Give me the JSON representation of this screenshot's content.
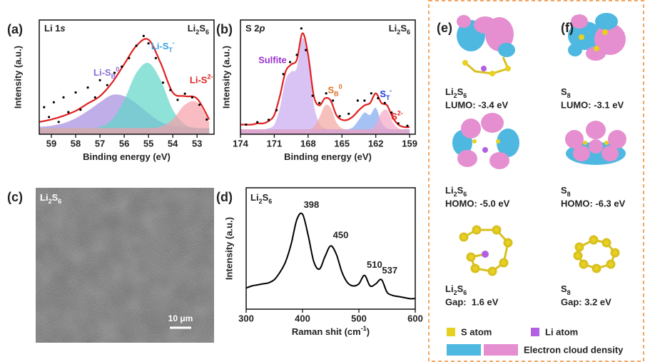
{
  "chart_data": [
    {
      "type": "line",
      "panel_label": "(a)",
      "title": [
        {
          "text": "Li 1"
        },
        {
          "text": "s",
          "style": "italic"
        }
      ],
      "compound": [
        {
          "text": "Li"
        },
        {
          "text": "2",
          "shift": "sub"
        },
        {
          "text": "S"
        },
        {
          "text": "6",
          "shift": "sub"
        }
      ],
      "x_label": [
        {
          "text": "Binding energy (eV)"
        }
      ],
      "y_label": "Intensity (a.u.)",
      "x": [
        59.5,
        59,
        58.5,
        58,
        57.5,
        57,
        56.5,
        56,
        55.5,
        55,
        54.5,
        54,
        53.5,
        53,
        52.5
      ],
      "xlim": [
        59.5,
        52.3
      ],
      "xticks": [
        59,
        58,
        57,
        56,
        55,
        54,
        53
      ],
      "ylim": [
        0,
        93
      ],
      "series": [
        {
          "name": [
            {
              "text": "Li-S"
            },
            {
              "text": "B",
              "shift": "sub"
            },
            {
              "text": "0",
              "shift": "super"
            }
          ],
          "style": "area",
          "color": "#a58be0",
          "label_color": "#8a6fd8",
          "values": [
            6,
            7,
            9,
            13,
            19,
            26,
            32,
            31,
            25,
            17,
            10,
            7,
            6,
            5,
            5
          ]
        },
        {
          "name": [
            {
              "text": "Li-S"
            },
            {
              "text": "T",
              "shift": "sub"
            },
            {
              "text": "-",
              "shift": "super"
            }
          ],
          "style": "area",
          "color": "#5fd6c8",
          "label_color": "#3aa0e0",
          "values": [
            5,
            5,
            5,
            5,
            5,
            6,
            12,
            28,
            50,
            58,
            44,
            20,
            8,
            5,
            5
          ]
        },
        {
          "name": [
            {
              "text": "Li-S"
            },
            {
              "text": "2-",
              "shift": "super"
            }
          ],
          "style": "area",
          "color": "#f5a0a8",
          "label_color": "#e02020",
          "values": [
            5,
            5,
            5,
            5,
            5,
            5,
            5,
            5,
            5,
            5,
            6,
            12,
            24,
            26,
            10
          ]
        },
        {
          "style": "line",
          "color": "#e02020",
          "values": [
            10,
            12,
            15,
            19,
            25,
            31,
            42,
            57,
            72,
            77,
            58,
            34,
            31,
            29,
            12
          ]
        },
        {
          "style": "dots",
          "color": "#000000",
          "x": [
            59.3,
            59.1,
            58.9,
            58.7,
            58.5,
            58.3,
            58.0,
            57.8,
            57.5,
            57.2,
            57.0,
            56.7,
            56.4,
            56.1,
            55.8,
            55.5,
            55.2,
            55.0,
            54.7,
            54.4,
            54.1,
            53.8,
            53.5,
            53.2,
            52.9,
            52.6
          ],
          "values": [
            22,
            14,
            26,
            10,
            30,
            18,
            34,
            20,
            38,
            30,
            44,
            40,
            50,
            55,
            62,
            72,
            80,
            74,
            62,
            42,
            36,
            28,
            33,
            30,
            24,
            12
          ]
        }
      ]
    },
    {
      "type": "line",
      "panel_label": "(b)",
      "title": [
        {
          "text": "S 2"
        },
        {
          "text": "p",
          "style": "italic"
        }
      ],
      "compound": [
        {
          "text": "Li"
        },
        {
          "text": "2",
          "shift": "sub"
        },
        {
          "text": "S"
        },
        {
          "text": "6",
          "shift": "sub"
        }
      ],
      "x_label": [
        {
          "text": "Binding energy (eV)"
        }
      ],
      "y_label": "Intensity (a.u.)",
      "x": [
        174,
        173.5,
        173,
        172.5,
        172,
        171.5,
        171,
        170.5,
        170,
        169.5,
        169,
        168.5,
        168,
        167.5,
        167,
        166.5,
        166,
        165.5,
        165,
        164.5,
        164,
        163.5,
        163,
        162.5,
        162,
        161.5,
        161,
        160.5,
        160,
        159.5,
        159
      ],
      "xlim": [
        174,
        158.5
      ],
      "xticks": [
        174,
        171,
        168,
        165,
        162,
        159
      ],
      "ylim": [
        0,
        95
      ],
      "series": [
        {
          "name": [
            {
              "text": "Sulfite"
            }
          ],
          "style": "area",
          "color": "#c9a8f0",
          "label_color": "#9b30d0",
          "values": [
            4,
            4,
            4,
            4,
            4,
            5,
            8,
            22,
            45,
            52,
            55,
            80,
            62,
            25,
            9,
            5,
            4,
            4,
            4,
            4,
            4,
            4,
            4,
            4,
            4,
            4,
            4,
            4,
            4,
            4,
            4
          ]
        },
        {
          "name": [
            {
              "text": "S"
            },
            {
              "text": "B",
              "shift": "sub"
            },
            {
              "text": "0",
              "shift": "super"
            }
          ],
          "style": "area",
          "color": "#f2a6a0",
          "label_color": "#e07020",
          "values": [
            4,
            4,
            4,
            4,
            4,
            4,
            4,
            4,
            4,
            4,
            4,
            4,
            4,
            6,
            14,
            24,
            22,
            10,
            5,
            4,
            4,
            4,
            4,
            4,
            4,
            4,
            4,
            4,
            4,
            4,
            4
          ]
        },
        {
          "name": [
            {
              "text": "S"
            },
            {
              "text": "T",
              "shift": "sub"
            },
            {
              "text": "-",
              "shift": "super"
            }
          ],
          "style": "area",
          "color": "#80a8f0",
          "label_color": "#2040e0",
          "values": [
            4,
            4,
            4,
            4,
            4,
            4,
            4,
            4,
            4,
            4,
            4,
            4,
            4,
            4,
            4,
            4,
            4,
            4,
            4,
            4,
            6,
            12,
            18,
            16,
            22,
            10,
            5,
            4,
            4,
            4,
            4
          ]
        },
        {
          "name": [
            {
              "text": "S"
            },
            {
              "text": "2-",
              "shift": "super"
            }
          ],
          "style": "area",
          "color": "#f5a6c8",
          "label_color": "#e02020",
          "values": [
            4,
            4,
            4,
            4,
            4,
            4,
            4,
            4,
            4,
            4,
            4,
            4,
            4,
            4,
            4,
            4,
            4,
            4,
            4,
            4,
            4,
            4,
            4,
            4,
            8,
            18,
            20,
            10,
            5,
            4,
            4
          ]
        },
        {
          "style": "line",
          "color": "#e02020",
          "values": [
            8,
            8,
            8,
            9,
            9,
            11,
            16,
            32,
            52,
            58,
            62,
            84,
            66,
            32,
            24,
            30,
            28,
            16,
            12,
            12,
            15,
            20,
            24,
            26,
            34,
            26,
            24,
            14,
            8,
            6,
            6
          ]
        },
        {
          "style": "dots",
          "color": "#000000",
          "x": [
            173.5,
            172.5,
            171.5,
            170.8,
            170.2,
            169.6,
            169,
            168.6,
            168.2,
            167.6,
            167,
            166.4,
            165.8,
            165.2,
            164.4,
            163.6,
            163,
            162.4,
            161.8,
            161.2,
            160.6,
            160,
            159.2
          ],
          "values": [
            8,
            10,
            12,
            20,
            50,
            60,
            66,
            88,
            70,
            32,
            26,
            34,
            28,
            15,
            17,
            28,
            28,
            34,
            30,
            26,
            18,
            9,
            7
          ]
        }
      ]
    },
    {
      "type": "line",
      "panel_label": "(d)",
      "compound": [
        {
          "text": "Li"
        },
        {
          "text": "2",
          "shift": "sub"
        },
        {
          "text": "S"
        },
        {
          "text": "6",
          "shift": "sub"
        }
      ],
      "x_label": [
        {
          "text": "Raman shit (cm"
        },
        {
          "text": "-1",
          "shift": "super"
        },
        {
          "text": ")"
        }
      ],
      "y_label": "Intensity (a.u.)",
      "x": [
        300,
        310,
        320,
        330,
        340,
        350,
        360,
        370,
        380,
        390,
        400,
        410,
        420,
        430,
        440,
        450,
        460,
        470,
        480,
        490,
        500,
        510,
        520,
        530,
        540,
        550,
        560,
        570,
        580,
        590,
        600
      ],
      "xlim": [
        300,
        600
      ],
      "xticks": [
        300,
        400,
        500,
        600
      ],
      "ylim": [
        0,
        115
      ],
      "series": [
        {
          "style": "line",
          "color": "#000000",
          "values": [
            20,
            22,
            23,
            24,
            25,
            28,
            35,
            45,
            62,
            85,
            90,
            70,
            45,
            38,
            50,
            60,
            52,
            35,
            25,
            22,
            24,
            32,
            22,
            24,
            28,
            16,
            13,
            12,
            11,
            10,
            10
          ]
        }
      ],
      "peaks": [
        398,
        450,
        510,
        537
      ]
    }
  ],
  "image_panel": {
    "panel_label": "(c)",
    "compound": [
      {
        "text": "Li"
      },
      {
        "text": "2",
        "shift": "sub"
      },
      {
        "text": "S"
      },
      {
        "text": "6",
        "shift": "sub"
      }
    ],
    "scale_bar": "10 μm"
  },
  "orbital_panel": {
    "labels": [
      "(e)",
      "(f)"
    ],
    "columns": [
      [
        {
          "molecule": [
            {
              "text": "Li"
            },
            {
              "text": "2",
              "shift": "sub"
            },
            {
              "text": "S"
            },
            {
              "text": "6",
              "shift": "sub"
            }
          ],
          "energy": "LUMO: -3.4 eV"
        },
        {
          "molecule": [
            {
              "text": "Li"
            },
            {
              "text": "2",
              "shift": "sub"
            },
            {
              "text": "S"
            },
            {
              "text": "6",
              "shift": "sub"
            }
          ],
          "energy": "HOMO: -5.0 eV"
        },
        {
          "molecule": [
            {
              "text": "Li"
            },
            {
              "text": "2",
              "shift": "sub"
            },
            {
              "text": "S"
            },
            {
              "text": "6",
              "shift": "sub"
            }
          ],
          "energy": "Gap:  1.6 eV"
        }
      ],
      [
        {
          "molecule": [
            {
              "text": "S"
            },
            {
              "text": "8",
              "shift": "sub"
            }
          ],
          "energy": "LUMO: -3.1 eV"
        },
        {
          "molecule": [
            {
              "text": "S"
            },
            {
              "text": "8",
              "shift": "sub"
            }
          ],
          "energy": "HOMO: -6.3 eV"
        },
        {
          "molecule": [
            {
              "text": "S"
            },
            {
              "text": "8",
              "shift": "sub"
            }
          ],
          "energy": "Gap: 3.2 eV"
        }
      ]
    ],
    "legend": {
      "s_atom": "S atom",
      "li_atom": "Li atom",
      "cloud": "Electron cloud density"
    }
  }
}
